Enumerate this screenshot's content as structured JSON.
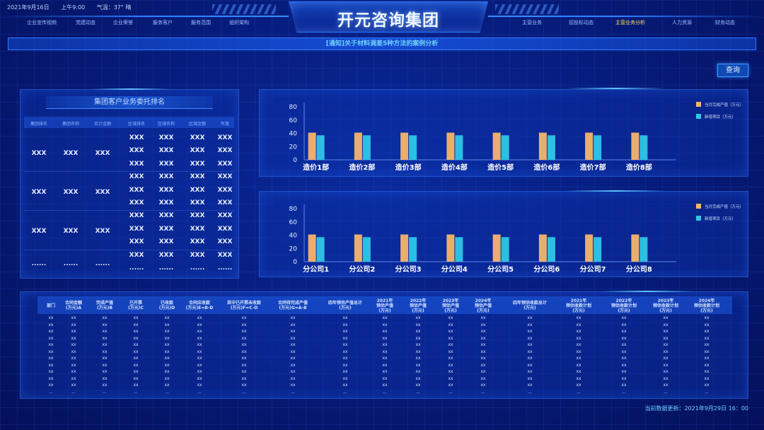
{
  "header": {
    "date": "2021年9月16日",
    "time": "上午9:00",
    "weather": "气温：37°  晴",
    "title": "开元咨询集团",
    "nav_left": [
      "企业宣传视频",
      "党建动态",
      "企业荣誉",
      "服务客户",
      "服务范围",
      "组织架构"
    ],
    "nav_right": [
      "主营业务",
      "招投标动态",
      "主营业务分析",
      "人力资源",
      "财务动态"
    ],
    "nav_right_active": 2
  },
  "notice": "[通知]关于材料调差5种方法的案例分析",
  "query_button": "查询",
  "ranking": {
    "title": "集团客户业务委托排名",
    "columns": [
      "集团排名",
      "集团名称",
      "合计金额",
      "区域排名",
      "区域名称",
      "区域金额",
      "年度"
    ],
    "groups": [
      {
        "main": [
          "XXX",
          "XXX",
          "XXX"
        ],
        "rows": [
          [
            "XXX",
            "XXX",
            "XXX",
            "XXX"
          ],
          [
            "XXX",
            "XXX",
            "XXX",
            "XXX"
          ],
          [
            "XXX",
            "XXX",
            "XXX",
            "XXX"
          ]
        ]
      },
      {
        "main": [
          "XXX",
          "XXX",
          "XXX"
        ],
        "rows": [
          [
            "XXX",
            "XXX",
            "XXX",
            "XXX"
          ],
          [
            "XXX",
            "XXX",
            "XXX",
            "XXX"
          ],
          [
            "XXX",
            "XXX",
            "XXX",
            "XXX"
          ]
        ]
      },
      {
        "main": [
          "XXX",
          "XXX",
          "XXX"
        ],
        "rows": [
          [
            "XXX",
            "XXX",
            "XXX",
            "XXX"
          ],
          [
            "XXX",
            "XXX",
            "XXX",
            "XXX"
          ],
          [
            "XXX",
            "XXX",
            "XXX",
            "XXX"
          ]
        ]
      },
      {
        "main": [
          "......",
          "......",
          "......"
        ],
        "rows": [
          [
            "XXX",
            "XXX",
            "XXX",
            "XXX"
          ],
          [
            "......",
            "......",
            "......",
            "......"
          ]
        ]
      }
    ]
  },
  "chart_data": [
    {
      "type": "bar",
      "categories": [
        "造价1部",
        "造价2部",
        "造价3部",
        "造价4部",
        "造价5部",
        "造价6部",
        "造价7部",
        "造价8部"
      ],
      "series": [
        {
          "name": "当月完成产值（万元）",
          "values": [
            41,
            41,
            41,
            41,
            41,
            41,
            41,
            41
          ],
          "color": "#f5b56a"
        },
        {
          "name": "新增项目（万元）",
          "values": [
            37,
            37,
            37,
            37,
            37,
            37,
            37,
            37
          ],
          "color": "#2ec7e6"
        }
      ],
      "ylim": [
        0,
        80
      ],
      "yticks": [
        0,
        20,
        40,
        60,
        80
      ],
      "legend": "top-right"
    },
    {
      "type": "bar",
      "categories": [
        "分公司1",
        "分公司2",
        "分公司3",
        "分公司4",
        "分公司5",
        "分公司6",
        "分公司7",
        "分公司8"
      ],
      "series": [
        {
          "name": "当月完成产值（万元）",
          "values": [
            41,
            41,
            41,
            41,
            41,
            41,
            41,
            41
          ],
          "color": "#f5b56a"
        },
        {
          "name": "新增项目（万元）",
          "values": [
            37,
            37,
            37,
            37,
            37,
            37,
            37,
            37
          ],
          "color": "#2ec7e6"
        }
      ],
      "ylim": [
        0,
        80
      ],
      "yticks": [
        0,
        20,
        40,
        60,
        80
      ],
      "legend": "top-right"
    }
  ],
  "table": {
    "columns": [
      [
        "部门"
      ],
      [
        "合同金额",
        "(万元)A"
      ],
      [
        "完成产值",
        "(万元)B"
      ],
      [
        "已开票",
        "(万元)C"
      ],
      [
        "已收款",
        "(万元)D"
      ],
      [
        "合同应收款",
        "(万元)E=B-D"
      ],
      [
        "其中已开票未收款",
        "(万元)F=C-D"
      ],
      [
        "合同待完成产值",
        "(万元)G=A-B"
      ],
      [
        "四年预估产值总计",
        "(万元)"
      ],
      [
        "2021年",
        "预估产值",
        "(万元)"
      ],
      [
        "2022年",
        "预估产值",
        "(万元)"
      ],
      [
        "2023年",
        "预估产值",
        "(万元)"
      ],
      [
        "2024年",
        "预估产值",
        "(万元)"
      ],
      [
        "四年预估收款总计",
        "(万元)"
      ],
      [
        "2021年",
        "预估收款计划",
        "(万元)"
      ],
      [
        "2022年",
        "预估收款计划",
        "(万元)"
      ],
      [
        "2023年",
        "预估收款计划",
        "(万元)"
      ],
      [
        "2024年",
        "预估收款计划",
        "(万元)"
      ]
    ],
    "cell_value": "xx",
    "last_row_value": "...",
    "row_count": 12
  },
  "updated": "当前数据更新：2021年9月29日  16：00",
  "colors": {
    "accent": "#2f7dff",
    "highlight": "#ffe85a",
    "bar_orange": "#f5b56a",
    "bar_cyan": "#2ec7e6"
  }
}
